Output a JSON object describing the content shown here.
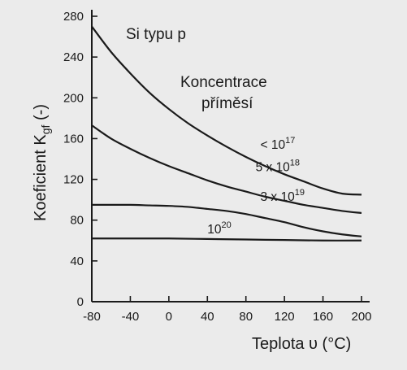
{
  "chart_data": {
    "type": "line",
    "xlabel": "Teplota υ (°C)",
    "ylabel": "Koeficient Kgf (-)",
    "xlim": [
      -80,
      200
    ],
    "ylim": [
      0,
      280
    ],
    "x_ticks": [
      -80,
      -40,
      0,
      40,
      80,
      120,
      160,
      200
    ],
    "y_ticks": [
      0,
      40,
      80,
      120,
      160,
      200,
      240,
      280
    ],
    "annotations": {
      "material": "Si typu p",
      "concentration_title_line1": "Koncentrace",
      "concentration_title_line2": "příměsí"
    },
    "series": [
      {
        "name": "< 10^17",
        "label_text": "< 10",
        "label_sup": "17",
        "x": [
          -80,
          -60,
          -40,
          -20,
          0,
          20,
          40,
          60,
          80,
          100,
          120,
          140,
          160,
          180,
          200
        ],
        "y": [
          270,
          245,
          224,
          205,
          189,
          175,
          163,
          152,
          142,
          133,
          125,
          118,
          111,
          106,
          105
        ]
      },
      {
        "name": "5 x 10^18",
        "label_text": "5 x 10",
        "label_sup": "18",
        "x": [
          -80,
          -60,
          -40,
          -20,
          0,
          20,
          40,
          60,
          80,
          100,
          120,
          140,
          160,
          180,
          200
        ],
        "y": [
          173,
          160,
          150,
          141,
          133,
          126,
          119,
          113,
          108,
          103,
          99,
          95,
          92,
          89,
          87
        ]
      },
      {
        "name": "3 x 10^19",
        "label_text": "3 x 10",
        "label_sup": "19",
        "x": [
          -80,
          -60,
          -40,
          -20,
          0,
          20,
          40,
          60,
          80,
          100,
          120,
          140,
          160,
          180,
          200
        ],
        "y": [
          95,
          95,
          95,
          94.5,
          94,
          93,
          91,
          89,
          86,
          82,
          78,
          73,
          69,
          66,
          64
        ]
      },
      {
        "name": "10^20",
        "label_text": "10",
        "label_sup": "20",
        "x": [
          -80,
          -40,
          0,
          40,
          80,
          120,
          160,
          200
        ],
        "y": [
          62,
          62,
          62,
          61.5,
          61,
          60.5,
          60,
          60
        ]
      }
    ]
  }
}
